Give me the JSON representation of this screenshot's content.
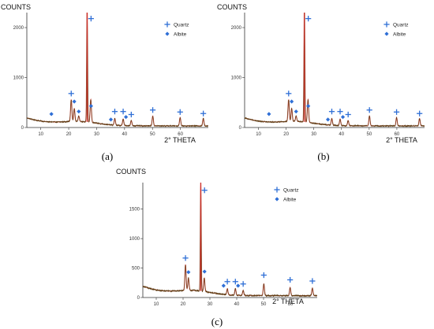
{
  "colors": {
    "quartz_marker": "#2f6fd6",
    "albite_marker": "#2f6fd6",
    "pattern_line": "#5a3a10",
    "fit_line": "#d0302a",
    "axis": "#333333"
  },
  "chart_data": [
    {
      "type": "line",
      "panel_label": "(a)",
      "ylabel": "COUNTS",
      "xlabel": "2° THETA",
      "xlim": [
        5,
        70
      ],
      "ylim": [
        0,
        2300
      ],
      "x_ticks": [
        10,
        20,
        30,
        40,
        50,
        60
      ],
      "y_ticks": [
        0,
        1000,
        2000
      ],
      "grid": false,
      "legend": {
        "position": "top-right",
        "entries": [
          {
            "name": "Quartz",
            "marker": "cross"
          },
          {
            "name": "Albite",
            "marker": "diamond"
          }
        ]
      },
      "peaks": [
        {
          "x": 20.9,
          "y": 560
        },
        {
          "x": 22.0,
          "y": 380
        },
        {
          "x": 23.6,
          "y": 230
        },
        {
          "x": 26.6,
          "y": 2450
        },
        {
          "x": 27.9,
          "y": 560
        },
        {
          "x": 36.5,
          "y": 180
        },
        {
          "x": 39.5,
          "y": 170
        },
        {
          "x": 42.4,
          "y": 140
        },
        {
          "x": 50.1,
          "y": 230
        },
        {
          "x": 59.9,
          "y": 200
        },
        {
          "x": 68.2,
          "y": 180
        }
      ],
      "quartz_markers": [
        {
          "x": 20.9,
          "y": 680
        },
        {
          "x": 28.0,
          "y": 2180
        },
        {
          "x": 36.5,
          "y": 320
        },
        {
          "x": 39.5,
          "y": 320
        },
        {
          "x": 42.4,
          "y": 260
        },
        {
          "x": 50.1,
          "y": 350
        },
        {
          "x": 59.9,
          "y": 310
        },
        {
          "x": 68.2,
          "y": 280
        }
      ],
      "albite_markers": [
        {
          "x": 13.8,
          "y": 270
        },
        {
          "x": 22.0,
          "y": 520
        },
        {
          "x": 23.6,
          "y": 320
        },
        {
          "x": 28.0,
          "y": 430
        },
        {
          "x": 35.1,
          "y": 160
        },
        {
          "x": 40.5,
          "y": 210
        }
      ]
    },
    {
      "type": "line",
      "panel_label": "(b)",
      "ylabel": "COUNTS",
      "xlabel": "2° THETA",
      "xlim": [
        5,
        70
      ],
      "ylim": [
        0,
        2300
      ],
      "x_ticks": [
        10,
        20,
        30,
        40,
        50,
        60
      ],
      "y_ticks": [
        0,
        1000,
        2000
      ],
      "grid": false,
      "legend": {
        "position": "top-right",
        "entries": [
          {
            "name": "Quartz",
            "marker": "cross"
          },
          {
            "name": "Albite",
            "marker": "diamond"
          }
        ]
      },
      "peaks": [
        {
          "x": 20.9,
          "y": 560
        },
        {
          "x": 22.0,
          "y": 380
        },
        {
          "x": 23.6,
          "y": 230
        },
        {
          "x": 26.6,
          "y": 2450
        },
        {
          "x": 27.9,
          "y": 560
        },
        {
          "x": 36.5,
          "y": 180
        },
        {
          "x": 39.5,
          "y": 170
        },
        {
          "x": 42.4,
          "y": 140
        },
        {
          "x": 50.1,
          "y": 230
        },
        {
          "x": 59.9,
          "y": 200
        },
        {
          "x": 68.2,
          "y": 180
        }
      ],
      "quartz_markers": [
        {
          "x": 20.9,
          "y": 680
        },
        {
          "x": 28.0,
          "y": 2180
        },
        {
          "x": 36.5,
          "y": 320
        },
        {
          "x": 39.5,
          "y": 320
        },
        {
          "x": 42.4,
          "y": 260
        },
        {
          "x": 50.1,
          "y": 350
        },
        {
          "x": 59.9,
          "y": 310
        },
        {
          "x": 68.2,
          "y": 280
        }
      ],
      "albite_markers": [
        {
          "x": 13.8,
          "y": 270
        },
        {
          "x": 22.0,
          "y": 520
        },
        {
          "x": 23.6,
          "y": 320
        },
        {
          "x": 28.0,
          "y": 430
        },
        {
          "x": 35.1,
          "y": 160
        },
        {
          "x": 40.5,
          "y": 210
        }
      ]
    },
    {
      "type": "line",
      "panel_label": "(c)",
      "ylabel": "COUNTS",
      "xlabel": "2° THETA",
      "xlim": [
        5,
        70
      ],
      "ylim": [
        0,
        1950
      ],
      "x_ticks": [
        10,
        20,
        30,
        40,
        50,
        60
      ],
      "y_ticks": [
        0,
        500,
        1000,
        1500
      ],
      "grid": false,
      "legend": {
        "position": "top-right",
        "entries": [
          {
            "name": "Quartz",
            "marker": "cross"
          },
          {
            "name": "Albite",
            "marker": "diamond"
          }
        ]
      },
      "peaks": [
        {
          "x": 20.9,
          "y": 560
        },
        {
          "x": 22.0,
          "y": 330
        },
        {
          "x": 26.6,
          "y": 2000
        },
        {
          "x": 27.9,
          "y": 330
        },
        {
          "x": 36.5,
          "y": 150
        },
        {
          "x": 39.5,
          "y": 150
        },
        {
          "x": 42.4,
          "y": 120
        },
        {
          "x": 50.1,
          "y": 230
        },
        {
          "x": 59.9,
          "y": 170
        },
        {
          "x": 68.2,
          "y": 160
        }
      ],
      "quartz_markers": [
        {
          "x": 20.9,
          "y": 670
        },
        {
          "x": 28.0,
          "y": 1820
        },
        {
          "x": 36.5,
          "y": 270
        },
        {
          "x": 39.5,
          "y": 270
        },
        {
          "x": 42.4,
          "y": 230
        },
        {
          "x": 50.1,
          "y": 380
        },
        {
          "x": 59.9,
          "y": 300
        },
        {
          "x": 68.2,
          "y": 280
        }
      ],
      "albite_markers": [
        {
          "x": 22.0,
          "y": 430
        },
        {
          "x": 28.0,
          "y": 440
        },
        {
          "x": 35.1,
          "y": 200
        },
        {
          "x": 40.5,
          "y": 200
        }
      ]
    }
  ]
}
